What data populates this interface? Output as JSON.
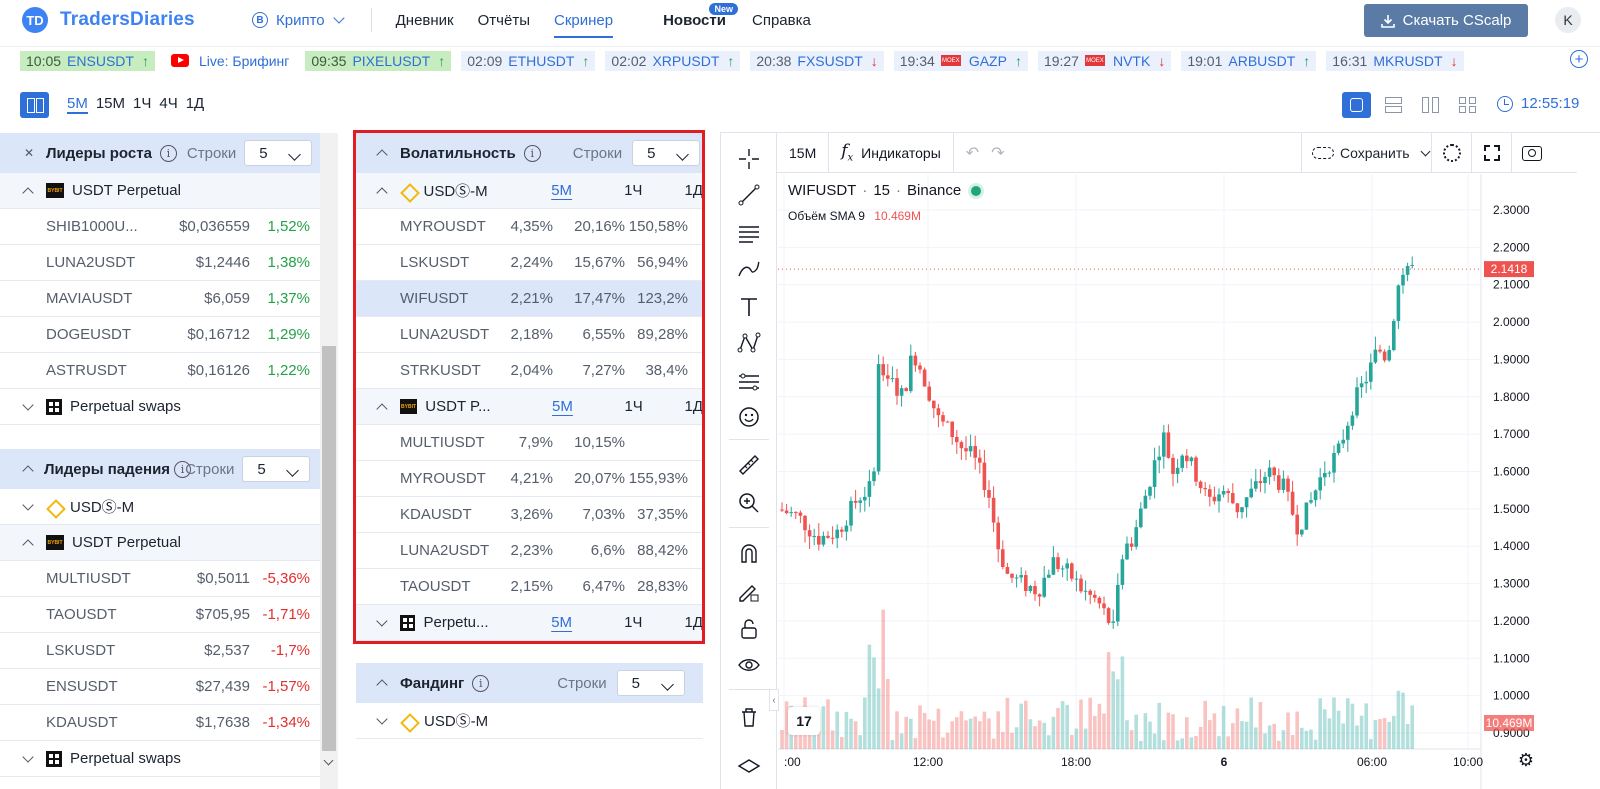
{
  "header": {
    "logo_mark": "TD",
    "logo_text": "TradersDiaries",
    "market": "Крипто",
    "nav": [
      "Дневник",
      "Отчёты",
      "Скринер"
    ],
    "news": "Новости",
    "news_badge": "New",
    "help": "Справка",
    "download": "Скачать CScalp",
    "avatar": "K"
  },
  "ticker": [
    {
      "time": "10:05",
      "sym": "ENSUSDT",
      "dir": "up",
      "highlight": true
    },
    {
      "live": true,
      "label": "Live: Брифинг"
    },
    {
      "time": "09:35",
      "sym": "PIXELUSDT",
      "dir": "up",
      "highlight": true
    },
    {
      "time": "02:09",
      "sym": "ETHUSDT",
      "dir": "up"
    },
    {
      "time": "02:02",
      "sym": "XRPUSDT",
      "dir": "up"
    },
    {
      "time": "20:38",
      "sym": "FXSUSDT",
      "dir": "down"
    },
    {
      "time": "19:34",
      "sym": "GAZP",
      "dir": "up",
      "flag": true
    },
    {
      "time": "19:27",
      "sym": "NVTK",
      "dir": "down",
      "flag": true
    },
    {
      "time": "19:01",
      "sym": "ARBUSDT",
      "dir": "up"
    },
    {
      "time": "16:31",
      "sym": "MKRUSDT",
      "dir": "down"
    }
  ],
  "toolbar": {
    "timeframes": [
      "5M",
      "15M",
      "1Ч",
      "4Ч",
      "1Д"
    ],
    "clock": "12:55:19"
  },
  "gainers": {
    "title": "Лидеры роста",
    "rows_label": "Строки",
    "rows_value": "5",
    "group": "USDT Perpetual",
    "rows": [
      {
        "sym": "SHIB1000U...",
        "price": "$0,036559",
        "chg": "1,52%"
      },
      {
        "sym": "LUNA2USDT",
        "price": "$1,2446",
        "chg": "1,38%"
      },
      {
        "sym": "MAVIAUSDT",
        "price": "$6,059",
        "chg": "1,37%"
      },
      {
        "sym": "DOGEUSDT",
        "price": "$0,16712",
        "chg": "1,29%"
      },
      {
        "sym": "ASTRUSDT",
        "price": "$0,16126",
        "chg": "1,22%"
      }
    ],
    "group2": "Perpetual swaps"
  },
  "losers": {
    "title": "Лидеры падения",
    "rows_label": "Строки",
    "rows_value": "5",
    "group1": "USDⓈ-M",
    "group2": "USDT Perpetual",
    "rows": [
      {
        "sym": "MULTIUSDT",
        "price": "$0,5011",
        "chg": "-5,36%"
      },
      {
        "sym": "TAOUSDT",
        "price": "$705,95",
        "chg": "-1,71%"
      },
      {
        "sym": "LSKUSDT",
        "price": "$2,537",
        "chg": "-1,7%"
      },
      {
        "sym": "ENSUSDT",
        "price": "$27,439",
        "chg": "-1,57%"
      },
      {
        "sym": "KDAUSDT",
        "price": "$1,7638",
        "chg": "-1,34%"
      }
    ],
    "group3": "Perpetual swaps"
  },
  "volatility": {
    "title": "Волатильность",
    "rows_label": "Строки",
    "rows_value": "5",
    "tf": [
      "5M",
      "1Ч",
      "1Д"
    ],
    "group1": "USDⓈ-M",
    "rows1": [
      {
        "sym": "MYROUSDT",
        "a": "4,35%",
        "b": "20,16%",
        "c": "150,58%"
      },
      {
        "sym": "LSKUSDT",
        "a": "2,24%",
        "b": "15,67%",
        "c": "56,94%"
      },
      {
        "sym": "WIFUSDT",
        "a": "2,21%",
        "b": "17,47%",
        "c": "123,2%"
      },
      {
        "sym": "LUNA2USDT",
        "a": "2,18%",
        "b": "6,55%",
        "c": "89,28%"
      },
      {
        "sym": "STRKUSDT",
        "a": "2,04%",
        "b": "7,27%",
        "c": "38,4%"
      }
    ],
    "group2": "USDT P...",
    "rows2": [
      {
        "sym": "MULTIUSDT",
        "a": "7,9%",
        "b": "10,15%",
        "c": ""
      },
      {
        "sym": "MYROUSDT",
        "a": "4,21%",
        "b": "20,07%",
        "c": "155,93%"
      },
      {
        "sym": "KDAUSDT",
        "a": "3,26%",
        "b": "7,03%",
        "c": "37,35%"
      },
      {
        "sym": "LUNA2USDT",
        "a": "2,23%",
        "b": "6,6%",
        "c": "88,42%"
      },
      {
        "sym": "TAOUSDT",
        "a": "2,15%",
        "b": "6,47%",
        "c": "28,83%"
      }
    ],
    "group3": "Perpetu..."
  },
  "funding": {
    "title": "Фандинг",
    "rows_label": "Строки",
    "rows_value": "5",
    "group1": "USDⓈ-M"
  },
  "chart": {
    "interval": "15M",
    "indicators": "Индикаторы",
    "save": "Сохранить",
    "symbol": "WIFUSDT",
    "sep": "·",
    "tf": "15",
    "exchange": "Binance",
    "volume_label": "Объём SMA 9",
    "volume_value": "10.469M",
    "last_price": "2.1418",
    "volume_badge": "10.469M",
    "tv_logo": "17",
    "y_ticks": [
      "2.3000",
      "2.2000",
      "2.1000",
      "2.0000",
      "1.9000",
      "1.8000",
      "1.7000",
      "1.6000",
      "1.5000",
      "1.4000",
      "1.3000",
      "1.2000",
      "1.1000",
      "1.0000",
      "0.9000"
    ],
    "x_ticks": [
      ":00",
      "12:00",
      "18:00",
      "6",
      "06:00",
      "10:00"
    ],
    "colors": {
      "up": "#26a69a",
      "down": "#ef5350"
    }
  }
}
